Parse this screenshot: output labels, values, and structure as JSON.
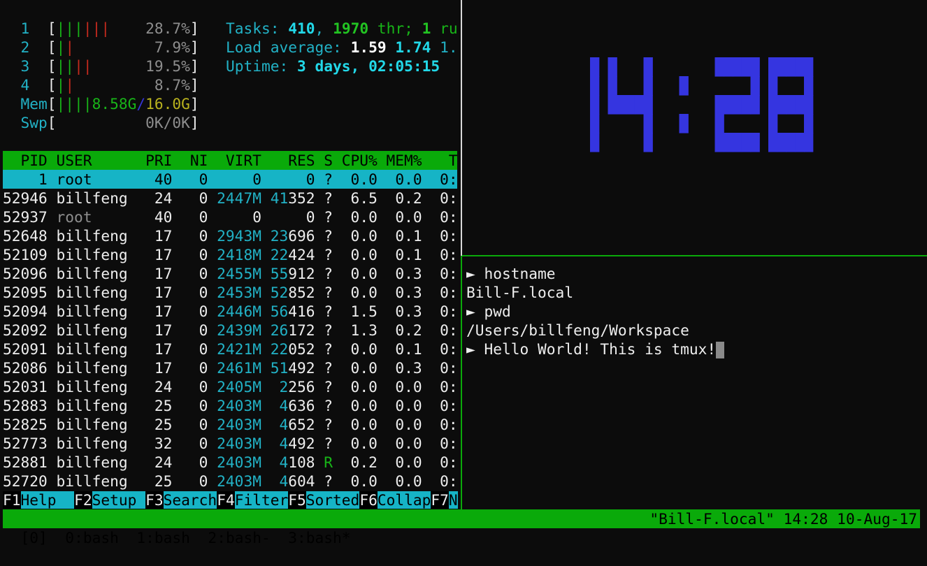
{
  "htop": {
    "cpus": [
      {
        "label": "1",
        "green": 3,
        "red": 3,
        "percent": "28.7%"
      },
      {
        "label": "2",
        "green": 1,
        "red": 1,
        "percent": "7.9%"
      },
      {
        "label": "3",
        "green": 2,
        "red": 2,
        "percent": "19.5%"
      },
      {
        "label": "4",
        "green": 1,
        "red": 1,
        "percent": "8.7%"
      }
    ],
    "mem": {
      "label": "Mem",
      "bars": 4,
      "used": "8.58G",
      "sep": "/",
      "total": "16.0G"
    },
    "swp": {
      "label": "Swp",
      "value": "0K/0K"
    },
    "tasks": {
      "label": "Tasks: ",
      "count": "410",
      "sep1": ", ",
      "threads": "1970",
      "thr_label": " thr; ",
      "running": "1",
      "running_label": " ru"
    },
    "load": {
      "label": "Load average: ",
      "l1": "1.59",
      "l5": "1.74",
      "l15": "1."
    },
    "uptime": {
      "label": "Uptime: ",
      "value": "3 days, 02:05:15"
    },
    "columns": [
      "PID",
      "USER",
      "PRI",
      "NI",
      "VIRT",
      "RES",
      "S",
      "CPU%",
      "MEM%",
      "T"
    ],
    "processes": [
      {
        "pid": "1",
        "user": "root",
        "pri": "40",
        "ni": "0",
        "virt": "0",
        "res": "0",
        "s": "?",
        "cpu": "0.0",
        "mem": "0.0",
        "time": "0:",
        "selected": true
      },
      {
        "pid": "52946",
        "user": "billfeng",
        "pri": "24",
        "ni": "0",
        "virt": "2447M",
        "res": "41352",
        "s": "?",
        "cpu": "6.5",
        "mem": "0.2",
        "time": "0:"
      },
      {
        "pid": "52937",
        "user": "root",
        "pri": "40",
        "ni": "0",
        "virt": "0",
        "res": "0",
        "s": "?",
        "cpu": "0.0",
        "mem": "0.0",
        "time": "0:",
        "dim_user": true
      },
      {
        "pid": "52648",
        "user": "billfeng",
        "pri": "17",
        "ni": "0",
        "virt": "2943M",
        "res": "23696",
        "s": "?",
        "cpu": "0.0",
        "mem": "0.1",
        "time": "0:"
      },
      {
        "pid": "52109",
        "user": "billfeng",
        "pri": "17",
        "ni": "0",
        "virt": "2418M",
        "res": "22424",
        "s": "?",
        "cpu": "0.0",
        "mem": "0.1",
        "time": "0:"
      },
      {
        "pid": "52096",
        "user": "billfeng",
        "pri": "17",
        "ni": "0",
        "virt": "2455M",
        "res": "55912",
        "s": "?",
        "cpu": "0.0",
        "mem": "0.3",
        "time": "0:"
      },
      {
        "pid": "52095",
        "user": "billfeng",
        "pri": "17",
        "ni": "0",
        "virt": "2453M",
        "res": "52852",
        "s": "?",
        "cpu": "0.0",
        "mem": "0.3",
        "time": "0:"
      },
      {
        "pid": "52094",
        "user": "billfeng",
        "pri": "17",
        "ni": "0",
        "virt": "2446M",
        "res": "56416",
        "s": "?",
        "cpu": "1.5",
        "mem": "0.3",
        "time": "0:"
      },
      {
        "pid": "52092",
        "user": "billfeng",
        "pri": "17",
        "ni": "0",
        "virt": "2439M",
        "res": "26172",
        "s": "?",
        "cpu": "1.3",
        "mem": "0.2",
        "time": "0:"
      },
      {
        "pid": "52091",
        "user": "billfeng",
        "pri": "17",
        "ni": "0",
        "virt": "2421M",
        "res": "22052",
        "s": "?",
        "cpu": "0.0",
        "mem": "0.1",
        "time": "0:"
      },
      {
        "pid": "52086",
        "user": "billfeng",
        "pri": "17",
        "ni": "0",
        "virt": "2461M",
        "res": "51492",
        "s": "?",
        "cpu": "0.0",
        "mem": "0.3",
        "time": "0:"
      },
      {
        "pid": "52031",
        "user": "billfeng",
        "pri": "24",
        "ni": "0",
        "virt": "2405M",
        "res": "2256",
        "s": "?",
        "cpu": "0.0",
        "mem": "0.0",
        "time": "0:"
      },
      {
        "pid": "52883",
        "user": "billfeng",
        "pri": "25",
        "ni": "0",
        "virt": "2403M",
        "res": "4636",
        "s": "?",
        "cpu": "0.0",
        "mem": "0.0",
        "time": "0:"
      },
      {
        "pid": "52825",
        "user": "billfeng",
        "pri": "25",
        "ni": "0",
        "virt": "2403M",
        "res": "4652",
        "s": "?",
        "cpu": "0.0",
        "mem": "0.0",
        "time": "0:"
      },
      {
        "pid": "52773",
        "user": "billfeng",
        "pri": "32",
        "ni": "0",
        "virt": "2403M",
        "res": "4492",
        "s": "?",
        "cpu": "0.0",
        "mem": "0.0",
        "time": "0:"
      },
      {
        "pid": "52881",
        "user": "billfeng",
        "pri": "24",
        "ni": "0",
        "virt": "2403M",
        "res": "4108",
        "s": "R",
        "cpu": "0.2",
        "mem": "0.0",
        "time": "0:"
      },
      {
        "pid": "52720",
        "user": "billfeng",
        "pri": "25",
        "ni": "0",
        "virt": "2403M",
        "res": "4604",
        "s": "?",
        "cpu": "0.0",
        "mem": "0.0",
        "time": "0:"
      }
    ],
    "fkeys": [
      {
        "key": "F1",
        "label": "Help  "
      },
      {
        "key": "F2",
        "label": "Setup "
      },
      {
        "key": "F3",
        "label": "Search"
      },
      {
        "key": "F4",
        "label": "Filter"
      },
      {
        "key": "F5",
        "label": "Sorted"
      },
      {
        "key": "F6",
        "label": "Collap"
      },
      {
        "key": "F7",
        "label": "N"
      }
    ]
  },
  "clock": {
    "time": "14:28",
    "color": "#3535e0"
  },
  "shell": {
    "lines": [
      {
        "prompt": "► ",
        "text": "hostname"
      },
      {
        "prompt": "",
        "text": "Bill-F.local"
      },
      {
        "prompt": "► ",
        "text": "pwd"
      },
      {
        "prompt": "",
        "text": "/Users/billfeng/Workspace"
      },
      {
        "prompt": "► ",
        "text": "Hello World! This is tmux!",
        "cursor": true
      }
    ]
  },
  "tmux": {
    "session": "[0]",
    "windows": [
      " 0:bash",
      " 1:bash",
      " 2:bash-",
      " 3:bash*"
    ],
    "status_right": "\"Bill-F.local\" 14:28 10-Aug-17"
  }
}
